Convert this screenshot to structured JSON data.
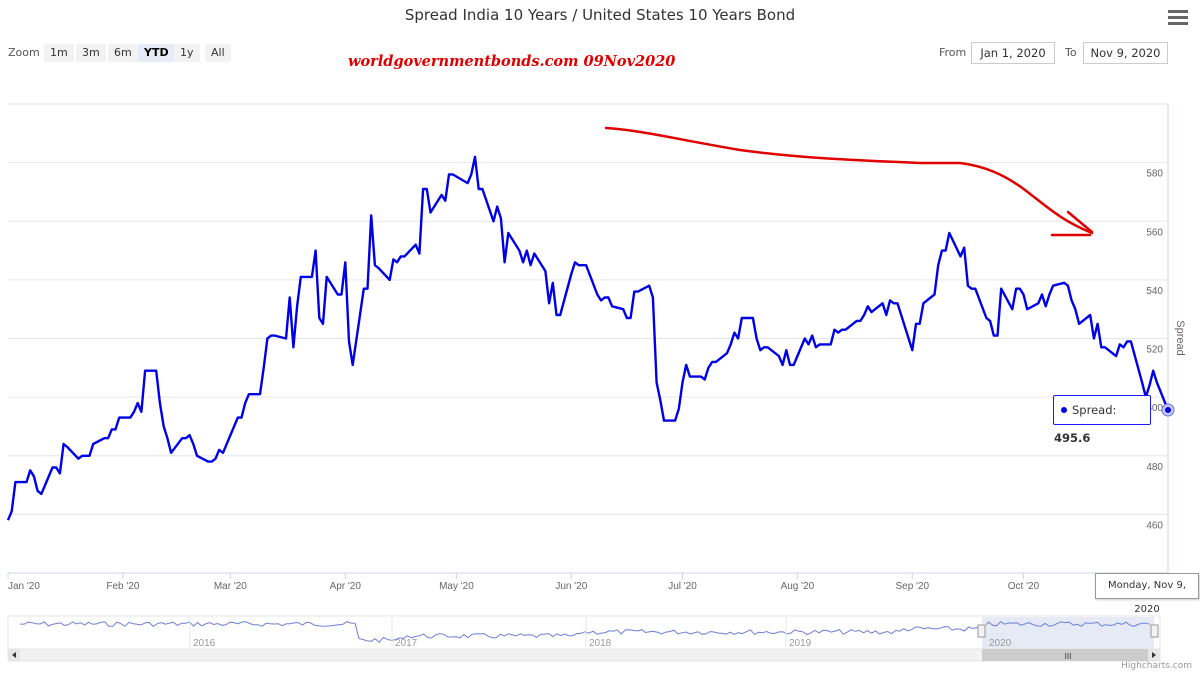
{
  "header": {
    "title": "Spread India 10 Years / United States 10 Years Bond",
    "watermark": "worldgovernmentbonds.com  09Nov2020"
  },
  "zoom": {
    "label": "Zoom",
    "buttons": [
      "1m",
      "3m",
      "6m",
      "YTD",
      "1y",
      "All"
    ],
    "selected": "YTD"
  },
  "range": {
    "from_label": "From",
    "from_value": "Jan 1, 2020",
    "to_label": "To",
    "to_value": "Nov 9, 2020"
  },
  "tooltip": {
    "series_label": "Spread:",
    "value": "495.6",
    "date": "Monday, Nov 9, 2020"
  },
  "credits": "Highcharts.com",
  "navigator": {
    "years": [
      "2016",
      "2017",
      "2018",
      "2019",
      "2020"
    ]
  },
  "colors": {
    "series": "#0000e6",
    "annotation": "#e10000",
    "grid": "#e6e6e6",
    "navigator_fill": "#ccd6eb"
  },
  "chart_data": {
    "type": "line",
    "title": "Spread India 10 Years / United States 10 Years Bond",
    "ylabel": "Spread",
    "ylim": [
      440,
      600
    ],
    "yticks": [
      440,
      460,
      480,
      500,
      520,
      540,
      560,
      580
    ],
    "xlim": [
      "2020-01-01",
      "2020-11-09"
    ],
    "xticks": [
      {
        "date": "2020-01-01",
        "label": "Jan '20"
      },
      {
        "date": "2020-02-01",
        "label": "Feb '20"
      },
      {
        "date": "2020-03-01",
        "label": "Mar '20"
      },
      {
        "date": "2020-04-01",
        "label": "Apr '20"
      },
      {
        "date": "2020-05-01",
        "label": "May '20"
      },
      {
        "date": "2020-06-01",
        "label": "Jun '20"
      },
      {
        "date": "2020-07-01",
        "label": "Jul '20"
      },
      {
        "date": "2020-08-01",
        "label": "Aug '20"
      },
      {
        "date": "2020-09-01",
        "label": "Sep '20"
      },
      {
        "date": "2020-10-01",
        "label": "Oct '20"
      }
    ],
    "series": [
      {
        "name": "Spread",
        "points": [
          [
            "2020-01-01",
            458
          ],
          [
            "2020-01-02",
            461
          ],
          [
            "2020-01-03",
            471
          ],
          [
            "2020-01-06",
            471
          ],
          [
            "2020-01-07",
            475
          ],
          [
            "2020-01-08",
            473
          ],
          [
            "2020-01-09",
            468
          ],
          [
            "2020-01-10",
            467
          ],
          [
            "2020-01-13",
            476
          ],
          [
            "2020-01-14",
            476
          ],
          [
            "2020-01-15",
            474
          ],
          [
            "2020-01-16",
            484
          ],
          [
            "2020-01-17",
            483
          ],
          [
            "2020-01-20",
            479
          ],
          [
            "2020-01-21",
            480
          ],
          [
            "2020-01-22",
            480
          ],
          [
            "2020-01-23",
            480
          ],
          [
            "2020-01-24",
            484
          ],
          [
            "2020-01-27",
            486
          ],
          [
            "2020-01-28",
            486
          ],
          [
            "2020-01-29",
            489
          ],
          [
            "2020-01-30",
            489
          ],
          [
            "2020-01-31",
            493
          ],
          [
            "2020-02-03",
            493
          ],
          [
            "2020-02-04",
            495
          ],
          [
            "2020-02-05",
            498
          ],
          [
            "2020-02-06",
            495
          ],
          [
            "2020-02-07",
            509
          ],
          [
            "2020-02-10",
            509
          ],
          [
            "2020-02-11",
            498
          ],
          [
            "2020-02-12",
            490
          ],
          [
            "2020-02-13",
            486
          ],
          [
            "2020-02-14",
            481
          ],
          [
            "2020-02-17",
            486
          ],
          [
            "2020-02-18",
            486
          ],
          [
            "2020-02-19",
            487
          ],
          [
            "2020-02-20",
            484
          ],
          [
            "2020-02-21",
            480
          ],
          [
            "2020-02-24",
            478
          ],
          [
            "2020-02-25",
            478
          ],
          [
            "2020-02-26",
            479
          ],
          [
            "2020-02-27",
            482
          ],
          [
            "2020-02-28",
            481
          ],
          [
            "2020-03-02",
            490
          ],
          [
            "2020-03-03",
            493
          ],
          [
            "2020-03-04",
            493
          ],
          [
            "2020-03-05",
            498
          ],
          [
            "2020-03-06",
            501
          ],
          [
            "2020-03-09",
            501
          ],
          [
            "2020-03-10",
            510
          ],
          [
            "2020-03-11",
            520
          ],
          [
            "2020-03-12",
            521
          ],
          [
            "2020-03-13",
            521
          ],
          [
            "2020-03-16",
            520
          ],
          [
            "2020-03-17",
            534
          ],
          [
            "2020-03-18",
            517
          ],
          [
            "2020-03-19",
            531
          ],
          [
            "2020-03-20",
            541
          ],
          [
            "2020-03-23",
            541
          ],
          [
            "2020-03-24",
            550
          ],
          [
            "2020-03-25",
            527
          ],
          [
            "2020-03-26",
            525
          ],
          [
            "2020-03-27",
            541
          ],
          [
            "2020-03-30",
            535
          ],
          [
            "2020-03-31",
            535
          ],
          [
            "2020-04-01",
            546
          ],
          [
            "2020-04-02",
            519
          ],
          [
            "2020-04-03",
            511
          ],
          [
            "2020-04-06",
            537
          ],
          [
            "2020-04-07",
            537
          ],
          [
            "2020-04-08",
            562
          ],
          [
            "2020-04-09",
            545
          ],
          [
            "2020-04-10",
            544
          ],
          [
            "2020-04-13",
            540
          ],
          [
            "2020-04-14",
            547
          ],
          [
            "2020-04-15",
            546
          ],
          [
            "2020-04-16",
            548
          ],
          [
            "2020-04-17",
            548
          ],
          [
            "2020-04-20",
            552
          ],
          [
            "2020-04-21",
            549
          ],
          [
            "2020-04-22",
            571
          ],
          [
            "2020-04-23",
            571
          ],
          [
            "2020-04-24",
            563
          ],
          [
            "2020-04-27",
            569
          ],
          [
            "2020-04-28",
            567
          ],
          [
            "2020-04-29",
            576
          ],
          [
            "2020-04-30",
            576
          ],
          [
            "2020-05-04",
            573
          ],
          [
            "2020-05-05",
            576
          ],
          [
            "2020-05-06",
            582
          ],
          [
            "2020-05-07",
            571
          ],
          [
            "2020-05-08",
            571
          ],
          [
            "2020-05-11",
            560
          ],
          [
            "2020-05-12",
            565
          ],
          [
            "2020-05-13",
            561
          ],
          [
            "2020-05-14",
            546
          ],
          [
            "2020-05-15",
            556
          ],
          [
            "2020-05-18",
            550
          ],
          [
            "2020-05-19",
            546
          ],
          [
            "2020-05-20",
            550
          ],
          [
            "2020-05-21",
            545
          ],
          [
            "2020-05-22",
            549
          ],
          [
            "2020-05-25",
            543
          ],
          [
            "2020-05-26",
            532
          ],
          [
            "2020-05-27",
            539
          ],
          [
            "2020-05-28",
            528
          ],
          [
            "2020-05-29",
            528
          ],
          [
            "2020-06-01",
            542
          ],
          [
            "2020-06-02",
            546
          ],
          [
            "2020-06-03",
            545
          ],
          [
            "2020-06-04",
            545
          ],
          [
            "2020-06-05",
            545
          ],
          [
            "2020-06-08",
            535
          ],
          [
            "2020-06-09",
            533
          ],
          [
            "2020-06-10",
            534
          ],
          [
            "2020-06-11",
            534
          ],
          [
            "2020-06-12",
            531
          ],
          [
            "2020-06-15",
            530
          ],
          [
            "2020-06-16",
            527
          ],
          [
            "2020-06-17",
            527
          ],
          [
            "2020-06-18",
            536
          ],
          [
            "2020-06-19",
            536
          ],
          [
            "2020-06-22",
            538
          ],
          [
            "2020-06-23",
            534
          ],
          [
            "2020-06-24",
            505
          ],
          [
            "2020-06-25",
            499
          ],
          [
            "2020-06-26",
            492
          ],
          [
            "2020-06-29",
            492
          ],
          [
            "2020-06-30",
            496
          ],
          [
            "2020-07-01",
            505
          ],
          [
            "2020-07-02",
            511
          ],
          [
            "2020-07-03",
            507
          ],
          [
            "2020-07-06",
            507
          ],
          [
            "2020-07-07",
            506
          ],
          [
            "2020-07-08",
            510
          ],
          [
            "2020-07-09",
            512
          ],
          [
            "2020-07-10",
            512
          ],
          [
            "2020-07-13",
            515
          ],
          [
            "2020-07-14",
            518
          ],
          [
            "2020-07-15",
            522
          ],
          [
            "2020-07-16",
            520
          ],
          [
            "2020-07-17",
            527
          ],
          [
            "2020-07-20",
            527
          ],
          [
            "2020-07-21",
            520
          ],
          [
            "2020-07-22",
            516
          ],
          [
            "2020-07-23",
            517
          ],
          [
            "2020-07-24",
            517
          ],
          [
            "2020-07-27",
            514
          ],
          [
            "2020-07-28",
            511
          ],
          [
            "2020-07-29",
            516
          ],
          [
            "2020-07-30",
            511
          ],
          [
            "2020-07-31",
            511
          ],
          [
            "2020-08-03",
            520
          ],
          [
            "2020-08-04",
            518
          ],
          [
            "2020-08-05",
            521
          ],
          [
            "2020-08-06",
            517
          ],
          [
            "2020-08-07",
            518
          ],
          [
            "2020-08-10",
            518
          ],
          [
            "2020-08-11",
            523
          ],
          [
            "2020-08-12",
            522
          ],
          [
            "2020-08-13",
            523
          ],
          [
            "2020-08-14",
            523
          ],
          [
            "2020-08-17",
            526
          ],
          [
            "2020-08-18",
            526
          ],
          [
            "2020-08-19",
            528
          ],
          [
            "2020-08-20",
            531
          ],
          [
            "2020-08-21",
            529
          ],
          [
            "2020-08-24",
            532
          ],
          [
            "2020-08-25",
            528
          ],
          [
            "2020-08-26",
            533
          ],
          [
            "2020-08-27",
            532
          ],
          [
            "2020-08-28",
            532
          ],
          [
            "2020-08-31",
            520
          ],
          [
            "2020-09-01",
            516
          ],
          [
            "2020-09-02",
            525
          ],
          [
            "2020-09-03",
            525
          ],
          [
            "2020-09-04",
            532
          ],
          [
            "2020-09-07",
            535
          ],
          [
            "2020-09-08",
            545
          ],
          [
            "2020-09-09",
            550
          ],
          [
            "2020-09-10",
            550
          ],
          [
            "2020-09-11",
            556
          ],
          [
            "2020-09-14",
            548
          ],
          [
            "2020-09-15",
            551
          ],
          [
            "2020-09-16",
            538
          ],
          [
            "2020-09-17",
            537
          ],
          [
            "2020-09-18",
            537
          ],
          [
            "2020-09-21",
            527
          ],
          [
            "2020-09-22",
            526
          ],
          [
            "2020-09-23",
            521
          ],
          [
            "2020-09-24",
            521
          ],
          [
            "2020-09-25",
            537
          ],
          [
            "2020-09-28",
            530
          ],
          [
            "2020-09-29",
            537
          ],
          [
            "2020-09-30",
            537
          ],
          [
            "2020-10-01",
            535
          ],
          [
            "2020-10-02",
            530
          ],
          [
            "2020-10-05",
            532
          ],
          [
            "2020-10-06",
            535
          ],
          [
            "2020-10-07",
            531
          ],
          [
            "2020-10-08",
            535
          ],
          [
            "2020-10-09",
            538
          ],
          [
            "2020-10-12",
            539
          ],
          [
            "2020-10-13",
            538
          ],
          [
            "2020-10-14",
            533
          ],
          [
            "2020-10-15",
            530
          ],
          [
            "2020-10-16",
            525
          ],
          [
            "2020-10-19",
            528
          ],
          [
            "2020-10-20",
            520
          ],
          [
            "2020-10-21",
            525
          ],
          [
            "2020-10-22",
            517
          ],
          [
            "2020-10-23",
            517
          ],
          [
            "2020-10-26",
            514
          ],
          [
            "2020-10-27",
            518
          ],
          [
            "2020-10-28",
            517
          ],
          [
            "2020-10-29",
            519
          ],
          [
            "2020-10-30",
            519
          ],
          [
            "2020-11-02",
            505
          ],
          [
            "2020-11-03",
            500
          ],
          [
            "2020-11-04",
            504
          ],
          [
            "2020-11-05",
            509
          ],
          [
            "2020-11-06",
            505
          ],
          [
            "2020-11-09",
            495.6
          ]
        ]
      }
    ],
    "annotation": {
      "kind": "hand-drawn red trend arrow",
      "color": "#e10000"
    }
  }
}
